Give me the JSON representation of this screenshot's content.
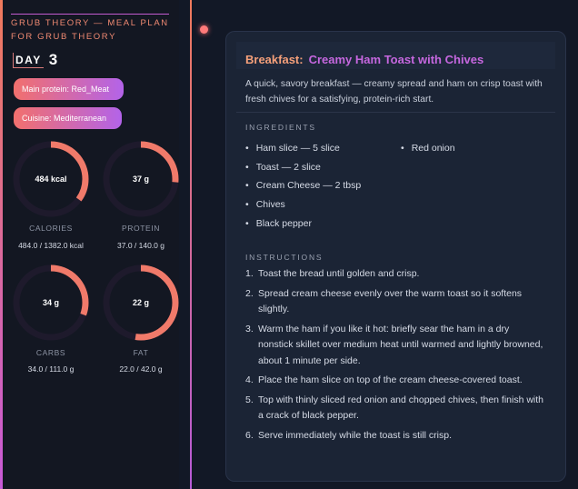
{
  "sidebar": {
    "brand": "GRUB THEORY — MEAL PLAN FOR GRUB THEORY",
    "day_label": "DAY",
    "day_number": "3",
    "pills": [
      "Main protein: Red_Meat",
      "Cuisine: Mediterranean"
    ],
    "macros": [
      {
        "center": "484 kcal",
        "label": "CALORIES",
        "sub": "484.0 / 1382.0 kcal",
        "fraction": 0.35
      },
      {
        "center": "37 g",
        "label": "PROTEIN",
        "sub": "37.0 / 140.0 g",
        "fraction": 0.264
      },
      {
        "center": "34 g",
        "label": "CARBS",
        "sub": "34.0 / 111.0 g",
        "fraction": 0.306
      },
      {
        "center": "22 g",
        "label": "FAT",
        "sub": "22.0 / 42.0 g",
        "fraction": 0.524
      }
    ]
  },
  "recipe": {
    "meal": "Breakfast:",
    "name": "Creamy Ham Toast with Chives",
    "description": "A quick, savory breakfast — creamy spread and ham on crisp toast with fresh chives for a satisfying, protein-rich start.",
    "ingredients_heading": "INGREDIENTS",
    "ingredients_col1": [
      "Ham slice — 5 slice",
      "Toast — 2 slice",
      "Cream Cheese — 2 tbsp",
      "Chives",
      "Black pepper"
    ],
    "ingredients_col2": [
      "Red onion"
    ],
    "instructions_heading": "INSTRUCTIONS",
    "steps": [
      {
        "n": "1.",
        "text": "Toast the bread until golden and crisp."
      },
      {
        "n": "2.",
        "text": "Spread cream cheese evenly over the warm toast so it softens slightly."
      },
      {
        "n": "3.",
        "text": "Warm the ham if you like it hot: briefly sear the ham in a dry nonstick skillet over medium heat until warmed and lightly browned, about 1 minute per side."
      },
      {
        "n": "4.",
        "text": "Place the ham slice on top of the cream cheese-covered toast."
      },
      {
        "n": "5.",
        "text": "Top with thinly sliced red onion and chopped chives, then finish with a crack of black pepper."
      },
      {
        "n": "6.",
        "text": "Serve immediately while the toast is still crisp."
      }
    ]
  },
  "colors": {
    "accent_coral": "#f07a6a",
    "accent_purple": "#c667df",
    "gauge_track": "#1e1a2c"
  }
}
